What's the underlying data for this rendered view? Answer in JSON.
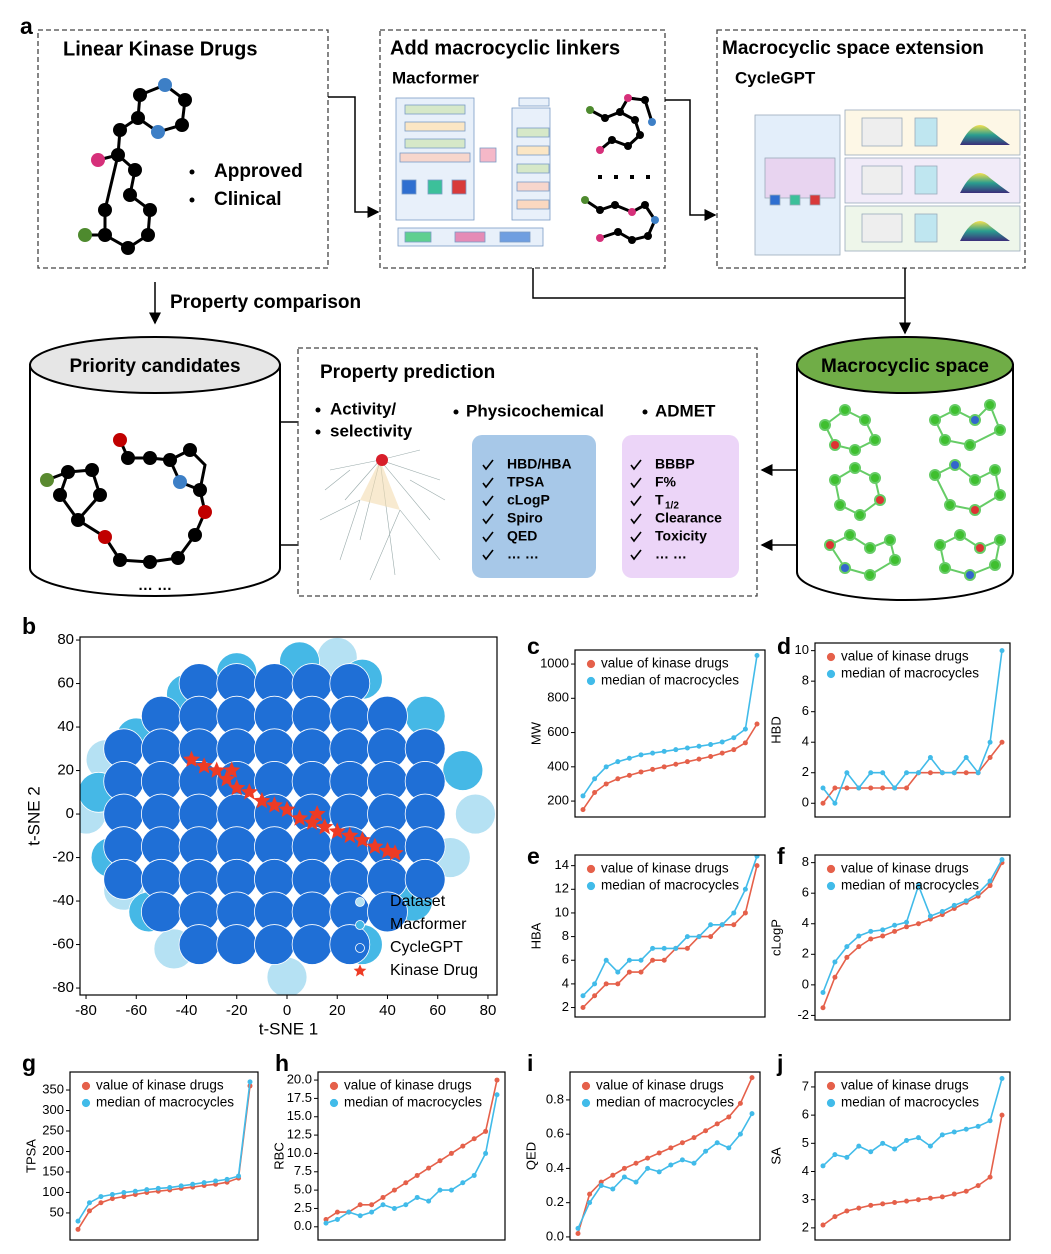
{
  "panel_a": {
    "label": "a",
    "linear": {
      "title": "Linear Kinase Drugs",
      "items": [
        "Approved",
        "Clinical"
      ]
    },
    "linkers": {
      "title": "Add macrocyclic linkers",
      "model": "Macformer"
    },
    "extension": {
      "title": "Macrocyclic  space extension",
      "model": "CycleGPT"
    },
    "comparison": "Property comparison",
    "candidates": {
      "title": "Priority candidates",
      "more": "… …"
    },
    "prediction": {
      "title": "Property prediction",
      "activity": [
        "Activity/",
        "selectivity"
      ],
      "physicochemical": {
        "title": "Physicochemical",
        "items": [
          "HBD/HBA",
          "TPSA",
          "cLogP",
          "Spiro",
          "QED",
          "… …"
        ]
      },
      "admet": {
        "title": "ADMET",
        "items": [
          "BBBP",
          "F%",
          {
            "text": "T",
            "subscript": "1/2"
          },
          "Clearance",
          "Toxicity",
          "… …"
        ]
      }
    },
    "space": "Macrocyclic space"
  },
  "chart_data": [
    {
      "panel": "b",
      "type": "scatter",
      "xlabel": "t-SNE 1",
      "ylabel": "t-SNE 2",
      "xlim": [
        -82.4,
        83.6
      ],
      "xticks": [
        -80,
        -60,
        -40,
        -20,
        0,
        20,
        40,
        60,
        80
      ],
      "ylim": [
        -83.2,
        81.4
      ],
      "yticks": [
        -80,
        -60,
        -40,
        -20,
        0,
        20,
        40,
        60,
        80
      ],
      "legend": "lower right",
      "series": [
        {
          "name": "Dataset",
          "color": "#b5e1f3",
          "marker": "circle",
          "x": [
            -72,
            -65,
            65,
            0,
            20,
            -45,
            75,
            -80
          ],
          "y": [
            25,
            -35,
            -20,
            -75,
            72,
            -62,
            0,
            0
          ]
        },
        {
          "name": "Macformer",
          "color": "#45b8e6",
          "marker": "circle",
          "x": [
            -40,
            -20,
            5,
            30,
            55,
            -60,
            -75,
            -70,
            -55,
            30,
            50,
            70
          ],
          "y": [
            55,
            65,
            70,
            62,
            45,
            35,
            10,
            -20,
            -45,
            -60,
            -40,
            20
          ]
        },
        {
          "name": "CycleGPT",
          "color": "#1f6fd6",
          "marker": "circle",
          "x": [
            -35,
            -20,
            -5,
            10,
            25,
            -50,
            -35,
            -20,
            -5,
            10,
            25,
            40,
            -65,
            -50,
            -35,
            -20,
            -5,
            10,
            25,
            40,
            55,
            -65,
            -50,
            -35,
            -20,
            -5,
            10,
            25,
            40,
            55,
            -65,
            -50,
            -35,
            -20,
            -5,
            10,
            25,
            40,
            55,
            -65,
            -50,
            -35,
            -20,
            -5,
            10,
            25,
            40,
            55,
            -65,
            -50,
            -35,
            -20,
            -5,
            10,
            25,
            40,
            55,
            -50,
            -35,
            -20,
            -5,
            10,
            25,
            40,
            -35,
            -20,
            -5,
            10,
            25
          ],
          "y": [
            60,
            60,
            60,
            60,
            60,
            45,
            45,
            45,
            45,
            45,
            45,
            45,
            30,
            30,
            30,
            30,
            30,
            30,
            30,
            30,
            30,
            15,
            15,
            15,
            15,
            15,
            15,
            15,
            15,
            15,
            0,
            0,
            0,
            0,
            0,
            0,
            0,
            0,
            0,
            -15,
            -15,
            -15,
            -15,
            -15,
            -15,
            -15,
            -15,
            -15,
            -30,
            -30,
            -30,
            -30,
            -30,
            -30,
            -30,
            -30,
            -30,
            -45,
            -45,
            -45,
            -45,
            -45,
            -45,
            -45,
            -60,
            -60,
            -60,
            -60,
            -60
          ]
        },
        {
          "name": "Kinase Drug",
          "color": "#ee3b24",
          "marker": "star",
          "x": [
            -38,
            -33,
            -28,
            -24,
            -20,
            -15,
            -10,
            -5,
            0,
            5,
            10,
            15,
            20,
            25,
            30,
            35,
            40,
            43,
            -22,
            12
          ],
          "y": [
            25,
            22,
            20,
            16,
            12,
            10,
            6,
            4,
            2,
            -2,
            -4,
            -6,
            -8,
            -10,
            -12,
            -15,
            -17,
            -18,
            20,
            0
          ]
        }
      ]
    },
    {
      "panel": "c",
      "type": "line",
      "ylabel": "MW",
      "ylim": [
        107,
        1082
      ],
      "yticks": [
        200,
        400,
        600,
        800,
        1000
      ],
      "legend": "upper left",
      "series": [
        {
          "name": "value of kinase drugs",
          "color": "#e5604a",
          "values": [
            150,
            250,
            300,
            330,
            350,
            370,
            385,
            400,
            415,
            430,
            445,
            460,
            480,
            500,
            540,
            650
          ]
        },
        {
          "name": "median of macrocycles",
          "color": "#41bbe9",
          "values": [
            230,
            330,
            400,
            430,
            450,
            470,
            480,
            490,
            500,
            510,
            520,
            530,
            545,
            570,
            620,
            1050
          ]
        }
      ]
    },
    {
      "panel": "d",
      "type": "line",
      "ylabel": "HBD",
      "ylim": [
        -0.9,
        10.5
      ],
      "yticks": [
        0,
        2,
        4,
        6,
        8,
        10
      ],
      "legend": "upper left",
      "series": [
        {
          "name": "value of kinase drugs",
          "color": "#e5604a",
          "values": [
            0,
            1,
            1,
            1,
            1,
            1,
            1,
            1,
            2,
            2,
            2,
            2,
            2,
            2,
            3,
            4
          ]
        },
        {
          "name": "median of macrocycles",
          "color": "#41bbe9",
          "values": [
            1,
            0,
            2,
            1,
            2,
            2,
            1,
            2,
            2,
            3,
            2,
            2,
            3,
            2,
            4,
            10
          ]
        }
      ]
    },
    {
      "panel": "e",
      "type": "line",
      "ylabel": "HBA",
      "ylim": [
        1.2,
        14.9
      ],
      "yticks": [
        2,
        4,
        6,
        8,
        10,
        12,
        14
      ],
      "legend": "upper left",
      "series": [
        {
          "name": "value of kinase drugs",
          "color": "#e5604a",
          "values": [
            2,
            3,
            4,
            4,
            5,
            5,
            6,
            6,
            7,
            7,
            8,
            8,
            9,
            9,
            10,
            14
          ]
        },
        {
          "name": "median of macrocycles",
          "color": "#41bbe9",
          "values": [
            3,
            4,
            6,
            5,
            6,
            6,
            7,
            7,
            7,
            8,
            8,
            9,
            9,
            10,
            12,
            14.8
          ]
        }
      ]
    },
    {
      "panel": "f",
      "type": "line",
      "ylabel": "cLogP",
      "ylim": [
        -2.3,
        8.5
      ],
      "yticks": [
        -2,
        0,
        2,
        4,
        6,
        8
      ],
      "legend": "upper left",
      "series": [
        {
          "name": "value of kinase drugs",
          "color": "#e5604a",
          "values": [
            -1.5,
            0.5,
            1.8,
            2.5,
            3,
            3.2,
            3.5,
            3.8,
            4,
            4.3,
            4.6,
            5,
            5.4,
            5.8,
            6.5,
            8
          ]
        },
        {
          "name": "median of macrocycles",
          "color": "#41bbe9",
          "values": [
            -0.5,
            1.5,
            2.5,
            3.2,
            3.5,
            3.6,
            3.9,
            4.1,
            6.5,
            4.5,
            4.8,
            5.2,
            5.5,
            6,
            6.8,
            8.2
          ]
        }
      ]
    },
    {
      "panel": "g",
      "type": "line",
      "ylabel": "TPSA",
      "ylim": [
        -16,
        394
      ],
      "yticks": [
        50,
        100,
        150,
        200,
        250,
        300,
        350
      ],
      "legend": "upper left",
      "series": [
        {
          "name": "value of kinase drugs",
          "color": "#e5604a",
          "values": [
            10,
            55,
            75,
            85,
            90,
            95,
            100,
            103,
            106,
            110,
            113,
            117,
            120,
            125,
            135,
            360
          ]
        },
        {
          "name": "median of macrocycles",
          "color": "#41bbe9",
          "values": [
            30,
            75,
            90,
            95,
            100,
            103,
            107,
            110,
            112,
            116,
            120,
            124,
            128,
            132,
            140,
            370
          ]
        }
      ]
    },
    {
      "panel": "h",
      "type": "line",
      "ylabel": "RBC",
      "ylim": [
        -1.8,
        21.1
      ],
      "yticks": [
        {
          "value": 0,
          "label": "0.0"
        },
        {
          "value": 2.5,
          "label": "2.5"
        },
        {
          "value": 5,
          "label": "5.0"
        },
        {
          "value": 7.5,
          "label": "7.5"
        },
        {
          "value": 10,
          "label": "10.0"
        },
        {
          "value": 12.5,
          "label": "12.5"
        },
        {
          "value": 15,
          "label": "15.0"
        },
        {
          "value": 17.5,
          "label": "17.5"
        },
        {
          "value": 20,
          "label": "20.0"
        }
      ],
      "legend": "upper left",
      "series": [
        {
          "name": "value of kinase drugs",
          "color": "#e5604a",
          "values": [
            1,
            2,
            2,
            3,
            3,
            4,
            5,
            6,
            7,
            8,
            9,
            10,
            11,
            12,
            13,
            20
          ]
        },
        {
          "name": "median of macrocycles",
          "color": "#41bbe9",
          "values": [
            0.5,
            1,
            2,
            1.5,
            2,
            3,
            2.5,
            3,
            4,
            3.5,
            5,
            5,
            6,
            7,
            10,
            18
          ]
        }
      ]
    },
    {
      "panel": "i",
      "type": "line",
      "ylabel": "QED",
      "ylim": [
        -0.018,
        0.963
      ],
      "yticks": [
        {
          "value": 0,
          "label": "0.0"
        },
        0.2,
        0.4,
        0.6,
        0.8
      ],
      "legend": "upper left",
      "series": [
        {
          "name": "value of kinase drugs",
          "color": "#e5604a",
          "values": [
            0.02,
            0.25,
            0.32,
            0.36,
            0.4,
            0.43,
            0.46,
            0.49,
            0.52,
            0.55,
            0.58,
            0.62,
            0.66,
            0.7,
            0.78,
            0.93
          ]
        },
        {
          "name": "median of macrocycles",
          "color": "#41bbe9",
          "values": [
            0.05,
            0.2,
            0.3,
            0.28,
            0.35,
            0.32,
            0.4,
            0.38,
            0.42,
            0.45,
            0.43,
            0.5,
            0.55,
            0.52,
            0.6,
            0.72
          ]
        }
      ]
    },
    {
      "panel": "j",
      "type": "line",
      "ylabel": "SA",
      "ylim": [
        1.57,
        7.53
      ],
      "yticks": [
        2,
        3,
        4,
        5,
        6,
        7
      ],
      "legend": "upper left",
      "series": [
        {
          "name": "value of kinase drugs",
          "color": "#e5604a",
          "values": [
            2.1,
            2.4,
            2.6,
            2.7,
            2.8,
            2.85,
            2.9,
            2.95,
            3.0,
            3.05,
            3.1,
            3.2,
            3.3,
            3.5,
            3.8,
            6.0
          ]
        },
        {
          "name": "median of macrocycles",
          "color": "#41bbe9",
          "values": [
            4.2,
            4.6,
            4.5,
            4.9,
            4.7,
            5.0,
            4.8,
            5.1,
            5.2,
            4.9,
            5.3,
            5.4,
            5.5,
            5.6,
            5.8,
            7.3
          ]
        }
      ]
    }
  ]
}
